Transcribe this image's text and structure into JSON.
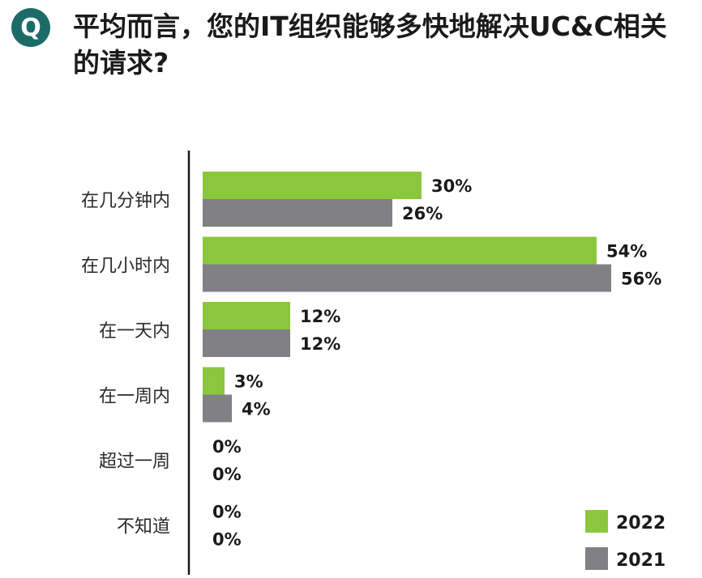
{
  "badge": {
    "letter": "Q"
  },
  "question": "平均而言，您的IT组织能够多快地解决UC&C相关的请求?",
  "chart_data": {
    "type": "bar",
    "orientation": "horizontal",
    "categories": [
      "在几分钟内",
      "在几小时内",
      "在一天内",
      "在一周内",
      "超过一周",
      "不知道"
    ],
    "series": [
      {
        "name": "2022",
        "color": "#8cc63f",
        "values": [
          30,
          54,
          12,
          3,
          0,
          0
        ]
      },
      {
        "name": "2021",
        "color": "#808085",
        "values": [
          26,
          56,
          12,
          4,
          0,
          0
        ]
      }
    ],
    "value_suffix": "%",
    "legend": "bottom-right",
    "grid": false
  }
}
